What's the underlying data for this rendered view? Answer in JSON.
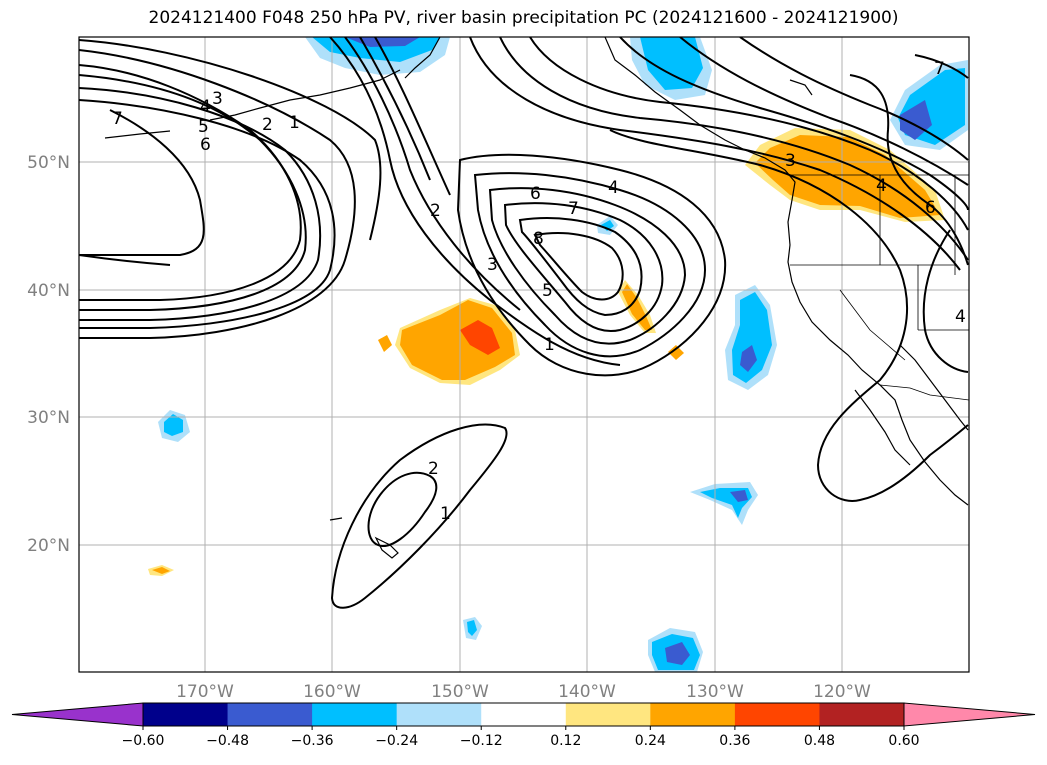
{
  "title": "2024121400 F048 250 hPa PV, river basin precipitation PC (2024121600 - 2024121900)",
  "lat_labels": [
    "50°N",
    "40°N",
    "30°N",
    "20°N"
  ],
  "lon_labels": [
    "170°W",
    "160°W",
    "150°W",
    "140°W",
    "130°W",
    "120°W"
  ],
  "colorbar": {
    "ticks": [
      "−0.60",
      "−0.48",
      "−0.36",
      "−0.24",
      "−0.12",
      "0.12",
      "0.24",
      "0.36",
      "0.48",
      "0.60"
    ],
    "colors": [
      "#9932cc",
      "#00008b",
      "#3a5bd0",
      "#00bfff",
      "#afe0fa",
      "#ffffff",
      "#ffe680",
      "#ffa500",
      "#ff4500",
      "#b22222",
      "#ff88aa"
    ]
  },
  "contour_labels": [
    "7",
    "4",
    "5",
    "6",
    "3",
    "2",
    "1",
    "2",
    "3",
    "6",
    "4",
    "7",
    "8",
    "5",
    "1",
    "2",
    "1",
    "3",
    "4",
    "6",
    "7",
    "4"
  ],
  "colors": {
    "neg_light": "#afe0fa",
    "neg_mid": "#00bfff",
    "neg_dark": "#3a5bd0",
    "pos_light": "#ffe680",
    "pos_mid": "#ffa500",
    "pos_dark": "#ff4500"
  }
}
